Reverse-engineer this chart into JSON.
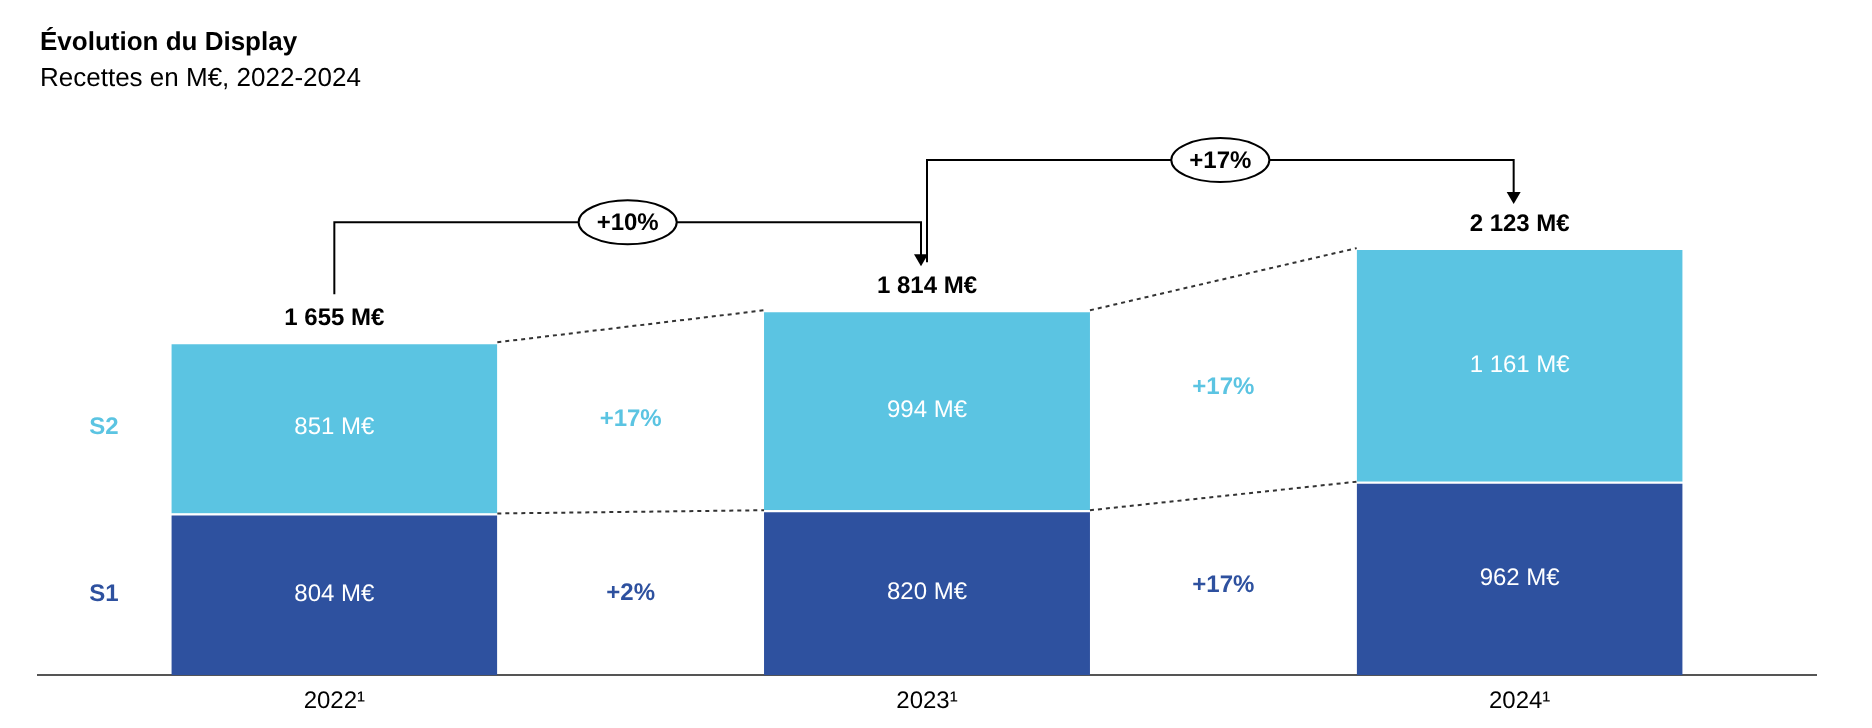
{
  "chart_data": {
    "type": "bar",
    "title": "Évolution du Display",
    "subtitle": "Recettes en M€, 2022-2024",
    "categories": [
      "2022¹",
      "2023¹",
      "2024¹"
    ],
    "stacked": true,
    "legend": false,
    "grid": false,
    "series": [
      {
        "name": "S1",
        "color": "#2e519f",
        "values": [
          804,
          820,
          962
        ],
        "value_labels": [
          "804 M€",
          "820 M€",
          "962 M€"
        ]
      },
      {
        "name": "S2",
        "color": "#5bc4e2",
        "values": [
          851,
          994,
          1161
        ],
        "value_labels": [
          "851 M€",
          "994 M€",
          "1 161 M€"
        ]
      }
    ],
    "totals": [
      "1 655 M€",
      "1 814 M€",
      "2 123 M€"
    ],
    "annotations": [
      "+10%",
      "+17%",
      "+2%",
      "+17%",
      "+17%",
      "+17%"
    ]
  }
}
